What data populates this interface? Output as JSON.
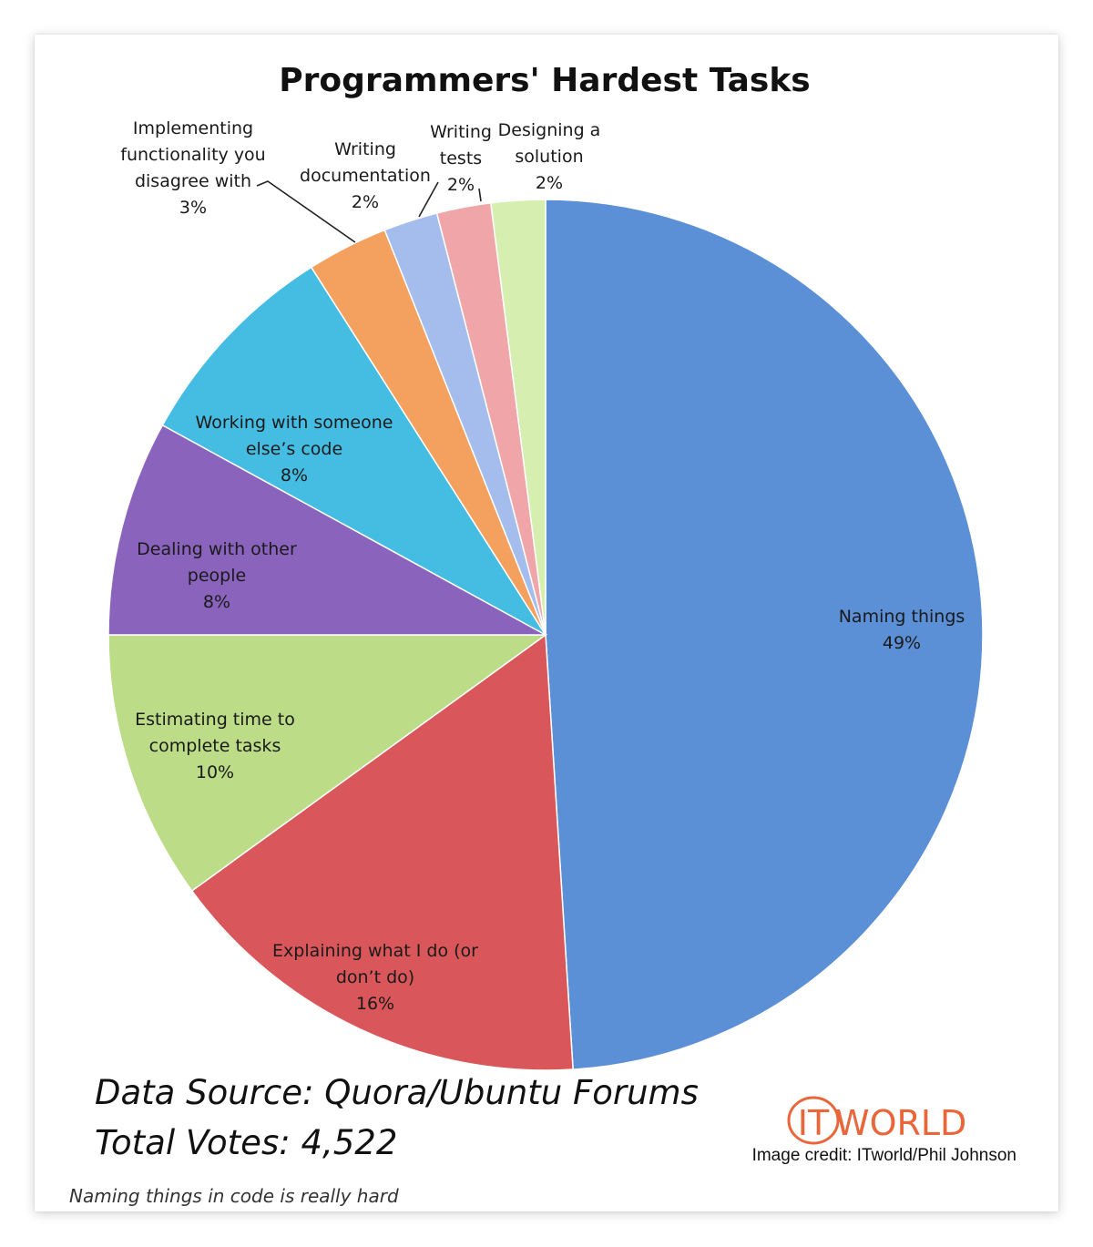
{
  "chart_data": {
    "type": "pie",
    "title": "Programmers' Hardest Tasks",
    "unit": "%",
    "slices": [
      {
        "name": "Naming things",
        "label_lines": [
          "Naming things"
        ],
        "value": 49,
        "display": "49%",
        "color": "#5b8fd6"
      },
      {
        "name": "Explaining what I do (or don't do)",
        "label_lines": [
          "Explaining what I do (or",
          "don’t do)"
        ],
        "value": 16,
        "display": "16%",
        "color": "#d9575a"
      },
      {
        "name": "Estimating time to complete tasks",
        "label_lines": [
          "Estimating time to",
          "complete tasks"
        ],
        "value": 10,
        "display": "10%",
        "color": "#bcdc88"
      },
      {
        "name": "Dealing with other people",
        "label_lines": [
          "Dealing with other",
          "people"
        ],
        "value": 8,
        "display": "8%",
        "color": "#8a63bd"
      },
      {
        "name": "Working with someone else's code",
        "label_lines": [
          "Working with someone",
          "else’s code"
        ],
        "value": 8,
        "display": "8%",
        "color": "#45bde3"
      },
      {
        "name": "Implementing functionality you disagree with",
        "label_lines": [
          "Implementing",
          "functionality you",
          "disagree with"
        ],
        "value": 3,
        "display": "3%",
        "color": "#f4a05e"
      },
      {
        "name": "Writing documentation",
        "label_lines": [
          "Writing",
          "documentation"
        ],
        "value": 2,
        "display": "2%",
        "color": "#a5bdec"
      },
      {
        "name": "Writing tests",
        "label_lines": [
          "Writing",
          "tests"
        ],
        "value": 2,
        "display": "2%",
        "color": "#f0a6a8"
      },
      {
        "name": "Designing a solution",
        "label_lines": [
          "Designing a",
          "solution"
        ],
        "value": 2,
        "display": "2%",
        "color": "#d6eeb0"
      }
    ]
  },
  "footer": {
    "source": "Data Source: Quora/Ubuntu Forums",
    "votes": "Total Votes: 4,522",
    "logo_left": "IT",
    "logo_right": "WORLD",
    "credit": "Image credit: ITworld/Phil Johnson"
  },
  "caption": "Naming things in code is really hard",
  "colors": {
    "logo": "#e8663a"
  }
}
